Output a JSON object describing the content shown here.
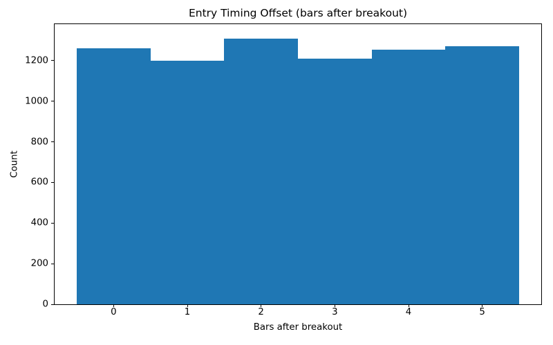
{
  "chart_data": {
    "type": "bar",
    "variant": "histogram",
    "title": "Entry Timing Offset (bars after breakout)",
    "xlabel": "Bars after breakout",
    "ylabel": "Count",
    "bin_edges": [
      -0.5,
      0.5,
      1.5,
      2.5,
      3.5,
      4.5,
      5.5
    ],
    "bin_centers": [
      0,
      1,
      2,
      3,
      4,
      5
    ],
    "values": [
      1260,
      1200,
      1310,
      1210,
      1255,
      1270
    ],
    "xticks": [
      0,
      1,
      2,
      3,
      4,
      5
    ],
    "yticks": [
      0,
      200,
      400,
      600,
      800,
      1000,
      1200
    ],
    "xlim": [
      -0.8,
      5.8
    ],
    "ylim": [
      0,
      1380
    ],
    "grid": false,
    "legend": false,
    "bar_color": "#1f77b4",
    "axis_color": "#000000",
    "text_color": "#000000",
    "background_color": "#ffffff"
  }
}
